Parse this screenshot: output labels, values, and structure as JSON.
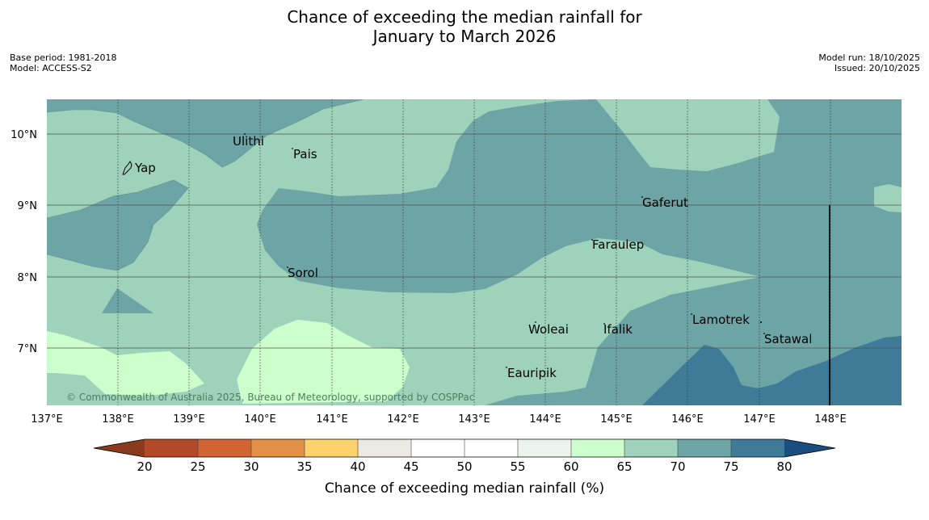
{
  "title": {
    "line1": "Chance of exceeding the median rainfall for",
    "line2": "January to March 2026"
  },
  "meta_left": {
    "base_period": "Base period: 1981-2018",
    "model": "Model: ACCESS-S2"
  },
  "meta_right": {
    "model_run": "Model run: 18/10/2025",
    "issued": "Issued: 20/10/2025"
  },
  "map": {
    "lat_labels": [
      "10°N",
      "9°N",
      "8°N",
      "7°N"
    ],
    "lon_labels": [
      "137°E",
      "138°E",
      "139°E",
      "140°E",
      "141°E",
      "142°E",
      "143°E",
      "144°E",
      "145°E",
      "146°E",
      "147°E",
      "148°E"
    ],
    "places": [
      "Yap",
      "Ulithi",
      "Pais",
      "Gaferut",
      "Faraulep",
      "Sorol",
      "Woleai",
      "Ifalik",
      "Lamotrek",
      "Satawal",
      "Eauripik"
    ],
    "copyright": "© Commonwealth of Australia 2025, Bureau of Meteorology, supported by COSPPac"
  },
  "colorbar": {
    "ticks": [
      "20",
      "25",
      "30",
      "35",
      "40",
      "45",
      "50",
      "55",
      "60",
      "65",
      "70",
      "75",
      "80"
    ],
    "title": "Chance of exceeding median rainfall (%)",
    "colors": {
      "below_20": "#8c3a1e",
      "c20_25": "#b34a27",
      "c25_30": "#d06432",
      "c30_35": "#e29146",
      "c35_40": "#fdd16b",
      "c40_45": "#eceae4",
      "c45_50": "#ffffff",
      "c50_55": "#ffffff",
      "c55_60": "#ebf4ec",
      "c60_65": "#ccffcc",
      "c65_70": "#9ed2ba",
      "c70_75": "#6da5a7",
      "c75_80": "#3f7a99",
      "above_80": "#1a4d80"
    }
  }
}
